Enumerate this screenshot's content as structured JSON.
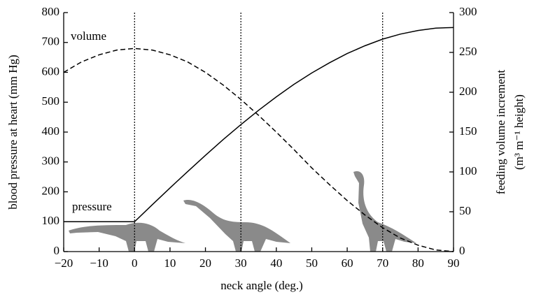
{
  "chart_data": {
    "type": "line",
    "xlabel": "neck angle (deg.)",
    "ylabel": "blood pressure at heart (mm Hg)",
    "y2label": [
      "feeding volume increment",
      "(m³ m⁻¹ height)"
    ],
    "x": [
      -20,
      -15,
      -10,
      -5,
      0,
      5,
      10,
      15,
      20,
      25,
      30,
      35,
      40,
      45,
      50,
      55,
      60,
      65,
      70,
      75,
      80,
      85,
      90
    ],
    "series": [
      {
        "name": "pressure",
        "color": "#000000",
        "line_style": "solid",
        "values": [
          100,
          100,
          100,
          100,
          100,
          157,
          213,
          268,
          322,
          375,
          425,
          473,
          518,
          560,
          598,
          632,
          663,
          689,
          711,
          728,
          740,
          748,
          750
        ]
      },
      {
        "name": "volume",
        "color": "#000000",
        "line_style": "dashed",
        "axis": "y2",
        "values": [
          225,
          238,
          247,
          253,
          255,
          253,
          247,
          238,
          225,
          209,
          191,
          171,
          150,
          128,
          105,
          84,
          64,
          46,
          30,
          17,
          8,
          2,
          0
        ]
      }
    ],
    "xlim": [
      -20,
      90
    ],
    "xticks": [
      {
        "value": -20,
        "label": "−20"
      },
      {
        "value": -10,
        "label": "−10"
      },
      0,
      10,
      20,
      30,
      40,
      50,
      60,
      70,
      80,
      90
    ],
    "ylim": [
      0,
      800
    ],
    "yticks": [
      0,
      100,
      200,
      300,
      400,
      500,
      600,
      700,
      800
    ],
    "y2lim": [
      0,
      300
    ],
    "y2ticks": [
      0,
      50,
      100,
      150,
      200,
      250,
      300
    ],
    "vlines": [
      0,
      30,
      70
    ],
    "grid": false
  }
}
